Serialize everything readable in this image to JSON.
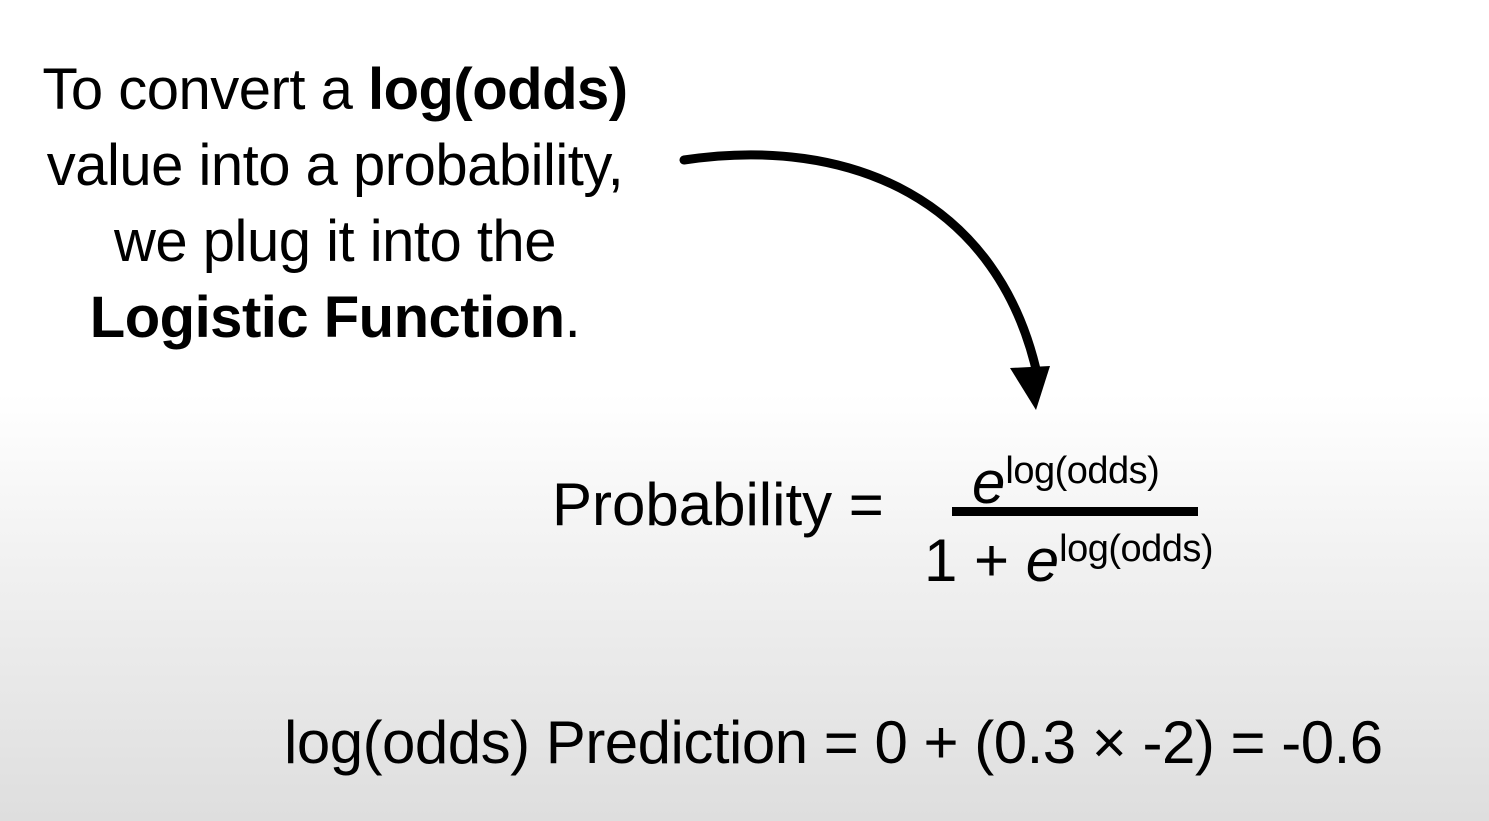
{
  "intro": {
    "line1_prefix": "To convert a ",
    "line1_bold": "log(odds)",
    "line2": "value into a probability,",
    "line3": "we plug it into the",
    "line4_bold": "Logistic Function",
    "line4_suffix": "."
  },
  "formula": {
    "lhs": "Probability =",
    "numerator_base": "e",
    "numerator_exponent": "log(odds)",
    "denominator_prefix": "1 + ",
    "denominator_base": "e",
    "denominator_exponent": "log(odds)"
  },
  "prediction": {
    "text": "log(odds) Prediction = 0 + (0.3 × -2) = -0.6"
  },
  "colors": {
    "text": "#000000",
    "background_top": "#ffffff",
    "background_bottom": "#dedede"
  }
}
